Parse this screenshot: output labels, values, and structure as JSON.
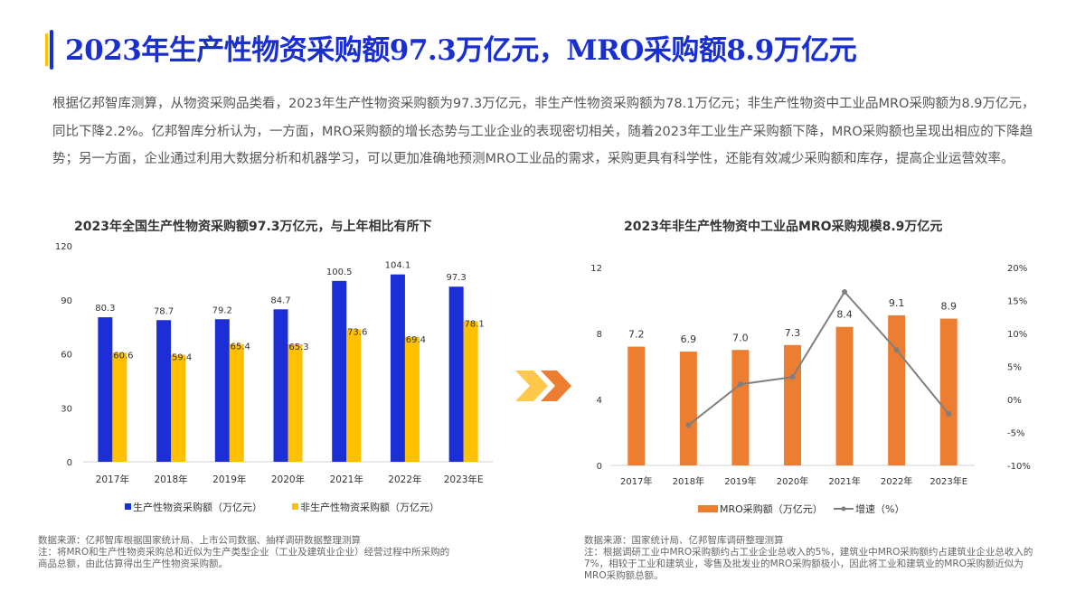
{
  "header": {
    "title": "2023年生产性物资采购额97.3万亿元，MRO采购额8.9万亿元"
  },
  "intro": "根据亿邦智库测算，从物资采购品类看，2023年生产性物资采购额为97.3万亿元，非生产性物资采购额为78.1万亿元；非生产性物资中工业品MRO采购额为8.9万亿元，同比下降2.2%。亿邦智库分析认为，一方面，MRO采购额的增长态势与工业企业的表现密切相关，随着2023年工业生产采购额下降，MRO采购额也呈现出相应的下降趋势；另一方面，企业通过利用大数据分析和机器学习，可以更加准确地预测MRO工业品的需求，采购更具有科学性，还能有效减少采购额和库存，提高企业运营效率。",
  "colors": {
    "title": "#1a2fd0",
    "blue": "#1c2fd6",
    "yellow": "#ffc000",
    "orange": "#ed7d31",
    "line": "#7f7f7f"
  },
  "chart_data": [
    {
      "type": "bar",
      "title": "2023年全国生产性物资采购额97.3万亿元，与上年相比有所下",
      "categories": [
        "2017年",
        "2018年",
        "2019年",
        "2020年",
        "2021年",
        "2022年",
        "2023年E"
      ],
      "series": [
        {
          "name": "生产性物资采购额（万亿元）",
          "values": [
            80.3,
            78.7,
            79.2,
            84.7,
            100.5,
            104.1,
            97.3
          ],
          "color": "#1c2fd6"
        },
        {
          "name": "非生产性物资采购额（万亿元）",
          "values": [
            60.6,
            59.4,
            65.4,
            65.3,
            73.6,
            69.4,
            78.1
          ],
          "color": "#ffc000"
        }
      ],
      "yticks": [
        "0",
        "30",
        "60",
        "90",
        "120"
      ],
      "ylim": [
        0,
        120
      ],
      "legend": "bottom",
      "grid": false,
      "notes": [
        "数据来源：亿邦智库根据国家统计局、上市公司数据、抽样调研数据整理测算",
        "注：将MRO和生产性物资采购总和近似为生产类型企业（工业及建筑业企业）经营过程中所采购的商品总额，由此估算得出生产性物资采购额。"
      ]
    },
    {
      "type": "bar+line",
      "title": "2023年非生产性物资中工业品MRO采购规模8.9万亿元",
      "categories": [
        "2017年",
        "2018年",
        "2019年",
        "2020年",
        "2021年",
        "2022年",
        "2023年E"
      ],
      "series": [
        {
          "name": "MRO采购额（万亿元）",
          "values": [
            7.2,
            6.9,
            7.0,
            7.3,
            8.4,
            9.1,
            8.9
          ],
          "color": "#ed7d31",
          "axis": "left"
        },
        {
          "name": "增速（%）",
          "values": [
            null,
            -3.9,
            2.3,
            3.4,
            16.3,
            7.5,
            -2.2
          ],
          "color": "#7f7f7f",
          "axis": "right"
        }
      ],
      "yticks": [
        "0",
        "4",
        "8",
        "12"
      ],
      "ylim": [
        0,
        12
      ],
      "y2ticks": [
        "-10%",
        "-5%",
        "0%",
        "5%",
        "10%",
        "15%",
        "20%"
      ],
      "y2lim": [
        -10,
        20
      ],
      "legend": "bottom",
      "grid": false,
      "notes": [
        "数据来源：国家统计局、亿邦智库调研整理测算",
        "注：根据调研工业中MRO采购额约占工业企业总收入的5%，建筑业中MRO采购额约占建筑业企业总收入的7%，相较于工业和建筑业，零售及批发业的MRO采购额极小，因此将工业和建筑业的MRO采购额近似为MRO采购额总额。"
      ]
    }
  ]
}
